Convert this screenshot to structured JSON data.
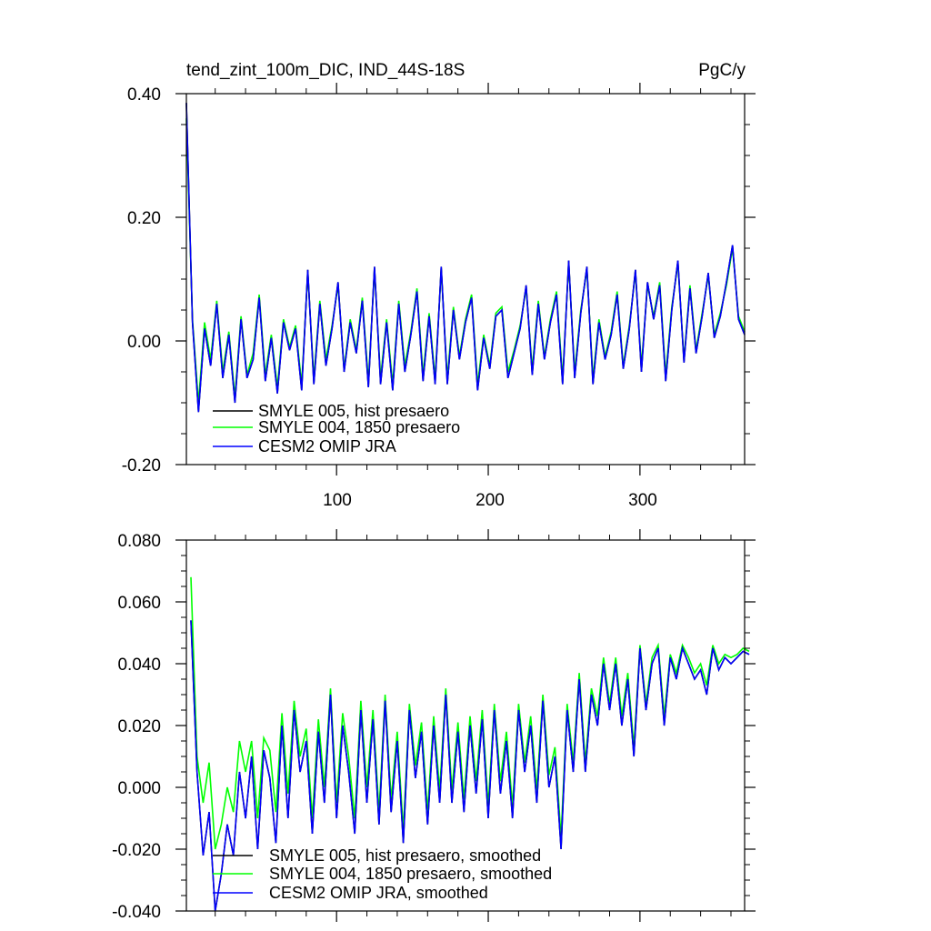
{
  "chart_data": [
    {
      "type": "line",
      "title": "tend_zint_100m_DIC, IND_44S-18S",
      "units": "PgC/y",
      "xlim": [
        1,
        369
      ],
      "ylim": [
        -0.2,
        0.4
      ],
      "x_ticks": [
        100,
        200,
        300
      ],
      "x_tick_labels": [
        "100",
        "200",
        "300"
      ],
      "y_ticks": [
        -0.2,
        0.0,
        0.2,
        0.4
      ],
      "y_tick_labels": [
        "-0.20",
        "0.00",
        "0.20",
        "0.40"
      ],
      "grid": false,
      "legend_position": "lower-left",
      "series": [
        {
          "name": "SMYLE 005, hist presaero",
          "color": "#000000"
        },
        {
          "name": "SMYLE 004, 1850 presaero",
          "color": "#00ff00"
        },
        {
          "name": "CESM2 OMIP JRA",
          "color": "#0000ff"
        }
      ],
      "x_start": 1,
      "x_step": 4,
      "values_blue": [
        0.385,
        0.03,
        -0.115,
        0.02,
        -0.04,
        0.06,
        -0.06,
        0.01,
        -0.1,
        0.035,
        -0.06,
        -0.03,
        0.07,
        -0.065,
        0.005,
        -0.085,
        0.03,
        -0.015,
        0.02,
        -0.08,
        0.115,
        -0.07,
        0.06,
        -0.04,
        0.02,
        0.095,
        -0.05,
        0.03,
        -0.02,
        0.065,
        -0.075,
        0.12,
        -0.07,
        0.03,
        -0.08,
        0.06,
        -0.05,
        0.01,
        0.08,
        -0.065,
        0.04,
        -0.07,
        0.12,
        -0.07,
        0.05,
        -0.03,
        0.03,
        0.07,
        -0.08,
        0.005,
        -0.045,
        0.04,
        0.05,
        -0.06,
        -0.02,
        0.02,
        0.09,
        -0.055,
        0.06,
        -0.03,
        0.03,
        0.075,
        -0.07,
        0.13,
        -0.06,
        0.045,
        0.12,
        -0.07,
        0.03,
        -0.03,
        0.01,
        0.075,
        -0.045,
        0.02,
        0.115,
        -0.05,
        0.095,
        0.035,
        0.09,
        -0.065,
        0.05,
        0.13,
        -0.035,
        0.085,
        -0.02,
        0.04,
        0.11,
        0.005,
        0.04,
        0.095,
        0.155,
        0.035,
        0.01
      ],
      "values_green": [
        0.36,
        0.035,
        -0.1,
        0.03,
        -0.03,
        0.065,
        -0.05,
        0.015,
        -0.09,
        0.04,
        -0.055,
        -0.02,
        0.075,
        -0.055,
        0.01,
        -0.075,
        0.035,
        -0.01,
        0.025,
        -0.07,
        0.11,
        -0.06,
        0.065,
        -0.03,
        0.025,
        0.09,
        -0.045,
        0.035,
        -0.015,
        0.07,
        -0.065,
        0.115,
        -0.06,
        0.035,
        -0.07,
        0.065,
        -0.04,
        0.015,
        0.085,
        -0.055,
        0.045,
        -0.06,
        0.115,
        -0.06,
        0.055,
        -0.025,
        0.035,
        0.075,
        -0.07,
        0.01,
        -0.04,
        0.045,
        0.055,
        -0.05,
        -0.015,
        0.025,
        0.085,
        -0.045,
        0.065,
        -0.025,
        0.035,
        0.08,
        -0.06,
        0.125,
        -0.05,
        0.05,
        0.115,
        -0.06,
        0.035,
        -0.025,
        0.015,
        0.08,
        -0.04,
        0.025,
        0.11,
        -0.04,
        0.09,
        0.04,
        0.095,
        -0.055,
        0.055,
        0.125,
        -0.03,
        0.09,
        -0.015,
        0.045,
        0.105,
        0.01,
        0.045,
        0.09,
        0.15,
        0.04,
        0.015
      ]
    },
    {
      "type": "line",
      "xlim": [
        1,
        369
      ],
      "ylim": [
        -0.04,
        0.08
      ],
      "x_ticks": [
        100,
        200,
        300
      ],
      "y_ticks": [
        -0.04,
        -0.02,
        0.0,
        0.02,
        0.04,
        0.06,
        0.08
      ],
      "y_tick_labels": [
        "-0.040",
        "-0.020",
        "0.000",
        "0.020",
        "0.040",
        "0.060",
        "0.080"
      ],
      "grid": false,
      "legend_position": "lower-left",
      "series": [
        {
          "name": "SMYLE 005, hist presaero, smoothed",
          "color": "#000000"
        },
        {
          "name": "SMYLE 004, 1850 presaero, smoothed",
          "color": "#00ff00"
        },
        {
          "name": "CESM2 OMIP JRA, smoothed",
          "color": "#0000ff"
        }
      ],
      "x_start": 4,
      "x_step": 4,
      "values_blue": [
        0.054,
        0.005,
        -0.022,
        -0.008,
        -0.04,
        -0.028,
        -0.012,
        -0.022,
        0.005,
        -0.01,
        0.01,
        -0.02,
        0.012,
        0.003,
        -0.018,
        0.02,
        -0.01,
        0.025,
        0.005,
        0.015,
        -0.015,
        0.018,
        -0.005,
        0.03,
        -0.01,
        0.02,
        0.005,
        -0.015,
        0.025,
        -0.005,
        0.022,
        -0.012,
        0.028,
        -0.008,
        0.015,
        -0.018,
        0.025,
        0.003,
        0.018,
        -0.012,
        0.02,
        -0.005,
        0.03,
        -0.005,
        0.018,
        -0.008,
        0.02,
        -0.002,
        0.022,
        -0.01,
        0.025,
        -0.002,
        0.015,
        -0.01,
        0.025,
        0.005,
        0.02,
        -0.005,
        0.028,
        0.0,
        0.01,
        -0.02,
        0.025,
        0.005,
        0.035,
        0.005,
        0.03,
        0.02,
        0.04,
        0.025,
        0.04,
        0.02,
        0.035,
        0.01,
        0.045,
        0.025,
        0.04,
        0.045,
        0.02,
        0.042,
        0.035,
        0.045,
        0.04,
        0.035,
        0.038,
        0.03,
        0.045,
        0.038,
        0.042,
        0.04,
        0.042,
        0.044,
        0.043
      ],
      "values_green": [
        0.068,
        0.01,
        -0.005,
        0.008,
        -0.02,
        -0.012,
        0.0,
        -0.008,
        0.015,
        0.005,
        0.015,
        -0.01,
        0.016,
        0.012,
        -0.008,
        0.024,
        -0.002,
        0.028,
        0.01,
        0.019,
        -0.01,
        0.022,
        0.0,
        0.032,
        -0.005,
        0.024,
        0.01,
        -0.01,
        0.028,
        0.0,
        0.025,
        -0.008,
        0.03,
        -0.004,
        0.018,
        -0.014,
        0.027,
        0.007,
        0.021,
        -0.008,
        0.023,
        -0.001,
        0.032,
        -0.001,
        0.021,
        -0.004,
        0.023,
        0.002,
        0.025,
        -0.006,
        0.027,
        0.002,
        0.018,
        -0.006,
        0.027,
        0.008,
        0.023,
        -0.001,
        0.03,
        0.004,
        0.013,
        -0.016,
        0.027,
        0.008,
        0.037,
        0.008,
        0.032,
        0.023,
        0.042,
        0.027,
        0.042,
        0.023,
        0.037,
        0.013,
        0.046,
        0.027,
        0.042,
        0.046,
        0.023,
        0.043,
        0.037,
        0.046,
        0.042,
        0.037,
        0.04,
        0.033,
        0.046,
        0.04,
        0.043,
        0.042,
        0.043,
        0.045,
        0.044
      ]
    }
  ]
}
